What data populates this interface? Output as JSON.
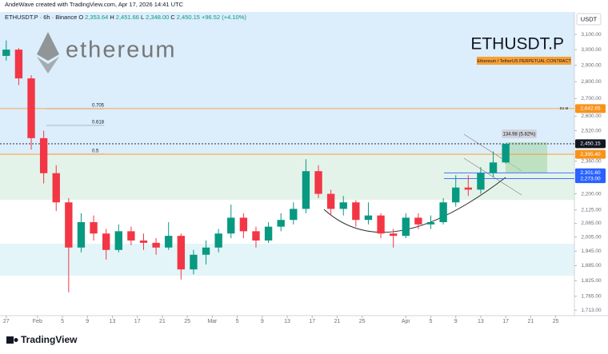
{
  "attribution": "AndeWave created with TradingView.com, Apr 17, 2026 14:41 UTC",
  "header": {
    "symbol": "ETHUSDT.P · 6h · Binance",
    "fields": [
      {
        "k": "O",
        "v": "2,353.64"
      },
      {
        "k": "H",
        "v": "2,451.66"
      },
      {
        "k": "L",
        "v": "2,348.00"
      },
      {
        "k": "C",
        "v": "2,450.15"
      }
    ],
    "change": "+96.52 (+4.10%)"
  },
  "watermark": {
    "brand": "ethereum",
    "ticker": "ETHUSDT.P",
    "description": "Ethereum / TetherUS PERPETUAL CONTRACT"
  },
  "currency": "USDT",
  "footer": "TradingView",
  "chart_data": {
    "type": "candlestick",
    "x": [
      "2026-01-27",
      "2026-01-29",
      "2026-01-31",
      "2026-02-02",
      "2026-02-04",
      "2026-02-06",
      "2026-02-08",
      "2026-02-10",
      "2026-02-12",
      "2026-02-14",
      "2026-02-16",
      "2026-02-18",
      "2026-02-20",
      "2026-02-22",
      "2026-02-24",
      "2026-02-26",
      "2026-02-28",
      "2026-03-02",
      "2026-03-04",
      "2026-03-06",
      "2026-03-08",
      "2026-03-10",
      "2026-03-12",
      "2026-03-14",
      "2026-03-16",
      "2026-03-18",
      "2026-03-20",
      "2026-03-22",
      "2026-03-24",
      "2026-03-26",
      "2026-03-28",
      "2026-03-30",
      "2026-04-01",
      "2026-04-03",
      "2026-04-05",
      "2026-04-07",
      "2026-04-09",
      "2026-04-11",
      "2026-04-13",
      "2026-04-15",
      "2026-04-17"
    ],
    "open": [
      2960,
      3000,
      2820,
      2480,
      2300,
      2160,
      1960,
      2070,
      2020,
      1950,
      2030,
      1990,
      1980,
      1960,
      2010,
      1870,
      1930,
      1960,
      2020,
      2090,
      2030,
      1990,
      2050,
      2080,
      2130,
      2310,
      2200,
      2130,
      2160,
      2080,
      2100,
      2020,
      2010,
      2090,
      2060,
      2070,
      2160,
      2230,
      2220,
      2300,
      2353.64
    ],
    "high": [
      3060,
      3010,
      2840,
      2520,
      2340,
      2180,
      2110,
      2100,
      2040,
      2060,
      2050,
      2020,
      2000,
      2070,
      2020,
      1950,
      1990,
      2040,
      2150,
      2110,
      2050,
      2070,
      2110,
      2160,
      2370,
      2340,
      2220,
      2190,
      2170,
      2160,
      2110,
      2040,
      2110,
      2110,
      2100,
      2180,
      2290,
      2290,
      2330,
      2410,
      2451.66
    ],
    "low": [
      2930,
      2780,
      2420,
      2250,
      2120,
      1780,
      1940,
      1990,
      1910,
      1940,
      1970,
      1950,
      1930,
      1950,
      1830,
      1850,
      1890,
      1940,
      2000,
      2000,
      1960,
      1980,
      2030,
      2060,
      2110,
      2180,
      2100,
      2100,
      2050,
      2060,
      2000,
      1960,
      2000,
      2040,
      2040,
      2060,
      2140,
      2190,
      2200,
      2280,
      2348
    ],
    "close": [
      3000,
      2820,
      2480,
      2300,
      2160,
      1960,
      2070,
      2020,
      1950,
      2030,
      1990,
      1980,
      1960,
      2010,
      1870,
      1930,
      1960,
      2020,
      2090,
      2030,
      1990,
      2050,
      2080,
      2130,
      2310,
      2200,
      2130,
      2160,
      2080,
      2100,
      2020,
      2010,
      2090,
      2060,
      2070,
      2160,
      2230,
      2220,
      2300,
      2353.64,
      2450.15
    ],
    "up_color": "#089981",
    "down_color": "#f23645",
    "log_scale": true,
    "ylim": [
      1693,
      3253
    ],
    "yticks": [
      {
        "value": 3100,
        "label": "3,100.00"
      },
      {
        "value": 3000,
        "label": "3,000.00"
      },
      {
        "value": 2900,
        "label": "2,900.00"
      },
      {
        "value": 2800,
        "label": "2,800.00"
      },
      {
        "value": 2700,
        "label": "2,700.00"
      },
      {
        "value": 2600,
        "label": "2,600.00"
      },
      {
        "value": 2520,
        "label": "2,520.00"
      },
      {
        "value": 2360,
        "label": "2,360.00"
      },
      {
        "value": 2200,
        "label": "2,200.00"
      },
      {
        "value": 2125,
        "label": "2,125.00"
      },
      {
        "value": 2065,
        "label": "2,065.00"
      },
      {
        "value": 2005,
        "label": "2,005.00"
      },
      {
        "value": 1945,
        "label": "1,945.00"
      },
      {
        "value": 1885,
        "label": "1,885.00"
      },
      {
        "value": 1825,
        "label": "1,825.00"
      },
      {
        "value": 1765,
        "label": "1,765.00"
      },
      {
        "value": 1713,
        "label": "1,713.00"
      }
    ],
    "xlim": [
      "2026-01-26",
      "2026-04-28"
    ],
    "xticks": [
      {
        "value": "2026-01-27",
        "label": "27"
      },
      {
        "value": "2026-02-01",
        "label": "Feb"
      },
      {
        "value": "2026-02-05",
        "label": "5"
      },
      {
        "value": "2026-02-09",
        "label": "9"
      },
      {
        "value": "2026-02-13",
        "label": "13"
      },
      {
        "value": "2026-02-17",
        "label": "17"
      },
      {
        "value": "2026-02-21",
        "label": "21"
      },
      {
        "value": "2026-02-25",
        "label": "25"
      },
      {
        "value": "2026-03-01",
        "label": "Mar"
      },
      {
        "value": "2026-03-05",
        "label": "5"
      },
      {
        "value": "2026-03-09",
        "label": "9"
      },
      {
        "value": "2026-03-13",
        "label": "13"
      },
      {
        "value": "2026-03-17",
        "label": "17"
      },
      {
        "value": "2026-03-21",
        "label": "21"
      },
      {
        "value": "2026-03-25",
        "label": "25"
      },
      {
        "value": "2026-04-01",
        "label": "Apr"
      },
      {
        "value": "2026-04-05",
        "label": "5"
      },
      {
        "value": "2026-04-09",
        "label": "9"
      },
      {
        "value": "2026-04-13",
        "label": "13"
      },
      {
        "value": "2026-04-17",
        "label": "17"
      },
      {
        "value": "2026-04-21",
        "label": "21"
      },
      {
        "value": "2026-04-25",
        "label": "25"
      }
    ],
    "price_lines": [
      {
        "value": 2642.65,
        "label": "2,642.65",
        "color": "#f7931a"
      },
      {
        "value": 2450.15,
        "label": "2,450.15",
        "color": "#131722"
      },
      {
        "value": 2395.4,
        "label": "2,395.40",
        "color": "#f7931a"
      },
      {
        "value": 2301.6,
        "label": "2,301.60",
        "color": "#2962ff"
      },
      {
        "value": 2273,
        "label": "2,273.00",
        "color": "#2962ff"
      }
    ],
    "fib_levels": [
      {
        "level": "0.705",
        "price": 2642
      },
      {
        "level": "0.618",
        "price": 2549
      },
      {
        "level": "0.5",
        "price": 2396
      }
    ],
    "line_note": "D1 M",
    "measure": "134.98 (5.82%)"
  }
}
